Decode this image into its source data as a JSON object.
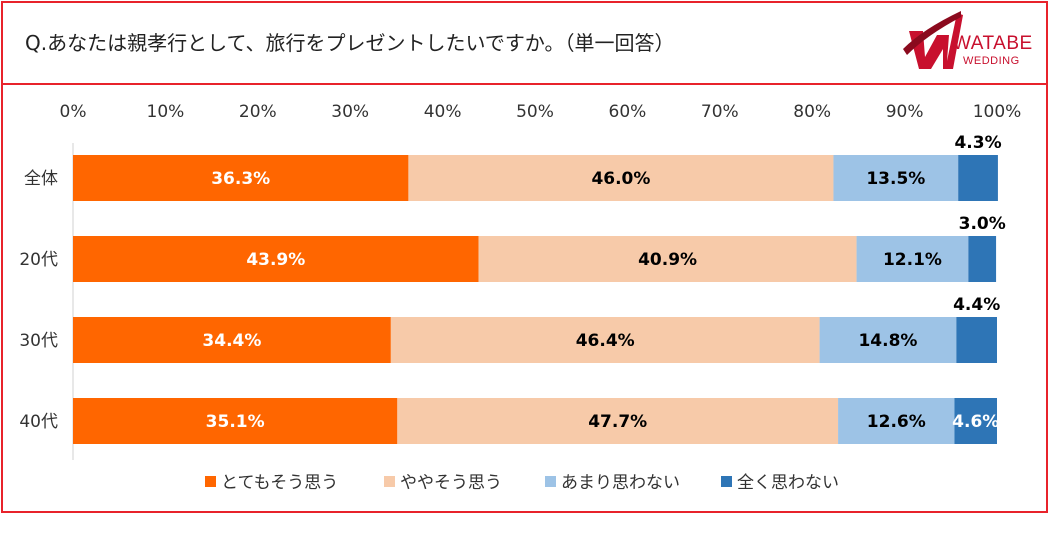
{
  "header": {
    "question": "Q.あなたは親孝行として、旅行をプレゼントしたいですか。（単一回答）",
    "logo_line1": "WATABE",
    "logo_line2": "WEDDING"
  },
  "colors": {
    "border": "#e8232b",
    "brand_red": "#c8102e"
  },
  "chart_data": {
    "type": "bar",
    "orientation": "horizontal",
    "stacked": "percent",
    "title": "",
    "xlabel": "",
    "ylabel": "",
    "xlim": [
      0,
      100
    ],
    "x_ticks": [
      "0%",
      "10%",
      "20%",
      "30%",
      "40%",
      "50%",
      "60%",
      "70%",
      "80%",
      "90%",
      "100%"
    ],
    "categories": [
      "全体",
      "20代",
      "30代",
      "40代"
    ],
    "series": [
      {
        "name": "とてもそう思う",
        "color": "#ff6600",
        "label_color": "#ffffff",
        "values": [
          36.3,
          43.9,
          34.4,
          35.1
        ],
        "labels": [
          "36.3%",
          "43.9%",
          "34.4%",
          "35.1%"
        ]
      },
      {
        "name": "ややそう思う",
        "color": "#f7caa9",
        "label_color": "#000000",
        "values": [
          46.0,
          40.9,
          46.4,
          47.7
        ],
        "labels": [
          "46.0%",
          "40.9%",
          "46.4%",
          "47.7%"
        ]
      },
      {
        "name": "あまり思わない",
        "color": "#9dc3e6",
        "label_color": "#000000",
        "values": [
          13.5,
          12.1,
          14.8,
          12.6
        ],
        "labels": [
          "13.5%",
          "12.1%",
          "14.8%",
          "12.6%"
        ]
      },
      {
        "name": "全く思わない",
        "color": "#2e75b6",
        "label_color": "#000000",
        "values": [
          4.3,
          3.0,
          4.4,
          4.6
        ],
        "labels": [
          "4.3%",
          "3.0%",
          "4.4%",
          "4.6%"
        ]
      }
    ],
    "grid": false,
    "legend_position": "bottom"
  }
}
